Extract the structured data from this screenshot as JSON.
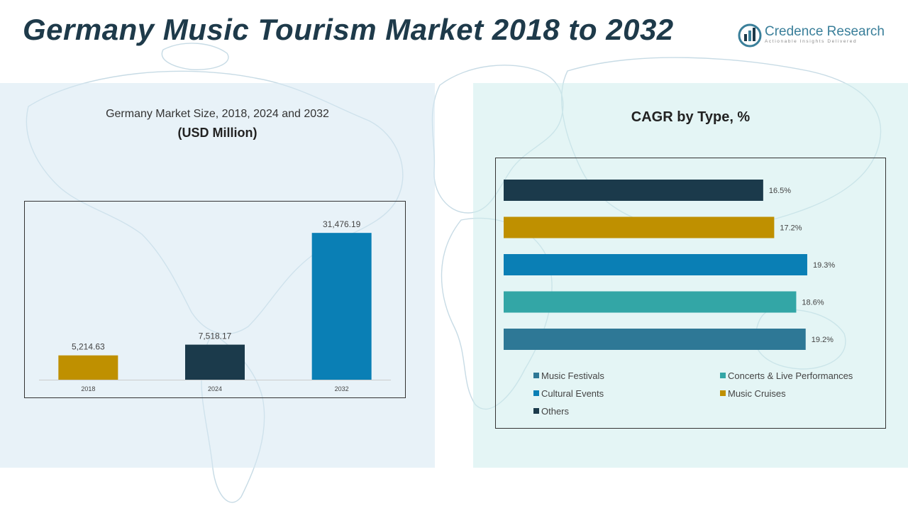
{
  "page_title": "Germany Music Tourism Market 2018 to 2032",
  "logo": {
    "name": "Credence Research",
    "tagline": "Actionable Insights Delivered",
    "colors": [
      "#3a7f9a",
      "#1e3a4a"
    ]
  },
  "left_panel": {
    "title": "Germany Market Size, 2018, 2024 and 2032",
    "subtitle": "(USD Million)"
  },
  "right_panel": {
    "title": "CAGR by Type, %"
  },
  "chart_data": [
    {
      "type": "bar",
      "title": "Germany Market Size, 2018, 2024 and 2032",
      "subtitle": "(USD Million)",
      "categories": [
        "2018",
        "2024",
        "2032"
      ],
      "values": [
        5214.63,
        7518.17,
        31476.19
      ],
      "value_labels": [
        "5,214.63",
        "7,518.17",
        "31,476.19"
      ],
      "colors": [
        "#bf9000",
        "#1b3a4b",
        "#0a7fb5"
      ],
      "ylim": [
        0,
        35000
      ],
      "grid": false
    },
    {
      "type": "bar",
      "orientation": "horizontal",
      "title": "CAGR by Type, %",
      "series": [
        {
          "name": "Others",
          "value": 16.5,
          "label": "16.5%",
          "color": "#1b3a4b"
        },
        {
          "name": "Music Cruises",
          "value": 17.2,
          "label": "17.2%",
          "color": "#bf9000"
        },
        {
          "name": "Cultural Events",
          "value": 19.3,
          "label": "19.3%",
          "color": "#0a7fb5"
        },
        {
          "name": "Concerts & Live Performances",
          "value": 18.6,
          "label": "18.6%",
          "color": "#33a6a6"
        },
        {
          "name": "Music Festivals",
          "value": 19.2,
          "label": "19.2%",
          "color": "#2e7896"
        }
      ],
      "legend": [
        "Music Festivals",
        "Concerts & Live Performances",
        "Cultural Events",
        "Music Cruises",
        "Others"
      ],
      "legend_position": "bottom",
      "xlim": [
        0,
        23
      ],
      "grid": false
    }
  ]
}
